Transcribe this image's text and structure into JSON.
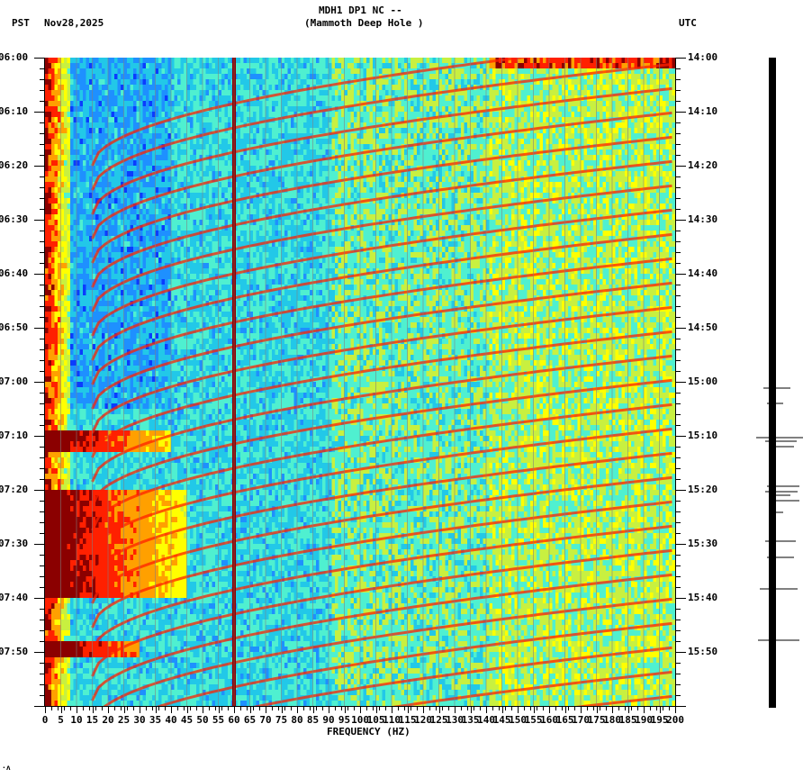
{
  "header": {
    "station": "MDH1 DP1 NC --",
    "location": "(Mammoth Deep Hole )",
    "left_tz": "PST",
    "date": "Nov28,2025",
    "right_tz": "UTC"
  },
  "footer": {
    "mark": "·ʌ"
  },
  "chart_data": {
    "type": "heatmap",
    "title": "MDH1 DP1 NC -- (Mammoth Deep Hole )",
    "subtitle": "Nov28,2025",
    "xlabel": "FREQUENCY (HZ)",
    "ylabel_left": "PST",
    "ylabel_right": "UTC",
    "xlim": [
      0,
      200
    ],
    "x_ticks": [
      0,
      5,
      10,
      15,
      20,
      25,
      30,
      35,
      40,
      45,
      50,
      55,
      60,
      65,
      70,
      75,
      80,
      85,
      90,
      95,
      100,
      105,
      110,
      115,
      120,
      125,
      130,
      135,
      140,
      145,
      150,
      155,
      160,
      165,
      170,
      175,
      180,
      185,
      190,
      195,
      200
    ],
    "y_ticks_left": [
      "06:00",
      "06:10",
      "06:20",
      "06:30",
      "06:40",
      "06:50",
      "07:00",
      "07:10",
      "07:20",
      "07:30",
      "07:40",
      "07:50"
    ],
    "y_ticks_right": [
      "14:00",
      "14:10",
      "14:20",
      "14:30",
      "14:40",
      "14:50",
      "15:00",
      "15:10",
      "15:20",
      "15:30",
      "15:40",
      "15:50"
    ],
    "time_range_minutes": 120,
    "colormap": [
      "#0a3cff",
      "#1e90ff",
      "#22c8e8",
      "#4ff0d0",
      "#c8f040",
      "#ffff00",
      "#ffa000",
      "#ff2000",
      "#8b0000"
    ],
    "persistent_lines_hz": [
      60
    ],
    "high_energy_bands_minutes": [
      {
        "start": 69,
        "end": 73,
        "fmax_hz": 40
      },
      {
        "start": 80,
        "end": 100,
        "fmax_hz": 45
      },
      {
        "start": 108,
        "end": 111,
        "fmax_hz": 30
      }
    ],
    "sweep_arcs": "repeating curved harmonic sweeps from ~20-60 Hz rising toward 200 Hz, ~4 min period",
    "seismogram_trace": "vertical trace on right, larger amplitudes 15:00-15:42 UTC"
  }
}
